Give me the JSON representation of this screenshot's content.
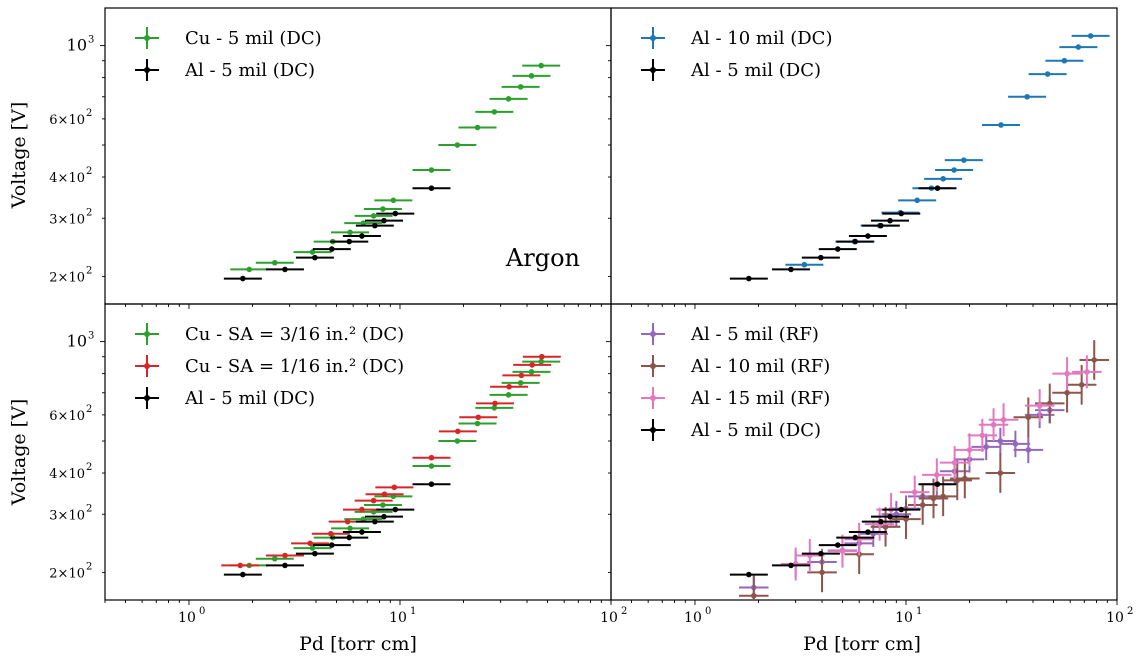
{
  "figure": {
    "annotation": "Argon",
    "ylabel": "Voltage [V]",
    "xlabel": "Pd [torr cm]",
    "x_tick_labels": [
      "10",
      "10",
      "10"
    ],
    "x_tick_exponents": [
      "0",
      "1",
      "2"
    ],
    "y_tick_labels": {
      "1000": {
        "base": "10",
        "exp": "3"
      },
      "600": {
        "base": "6×10",
        "exp": "2"
      },
      "400": {
        "base": "4×10",
        "exp": "2"
      },
      "300": {
        "base": "3×10",
        "exp": "2"
      },
      "200": {
        "base": "2×10",
        "exp": "2"
      }
    }
  },
  "chart_data": [
    {
      "type": "scatter",
      "x_scale": "log",
      "y_scale": "log",
      "xlim": [
        0.4,
        100
      ],
      "ylim": [
        165,
        1300
      ],
      "annotation": "Argon",
      "legend_position": "top-left",
      "series": [
        {
          "name": "Cu - 5 mil (DC)",
          "color": "#2ca02c",
          "x": [
            1.93,
            2.55,
            3.85,
            4.8,
            5.8,
            6.7,
            7.5,
            8.3,
            9.3,
            14.1,
            18.7,
            23.3,
            28.0,
            32.7,
            37.3,
            42.0,
            46.7
          ],
          "y": [
            210,
            220,
            237,
            255,
            272,
            290,
            305,
            320,
            340,
            420,
            500,
            565,
            630,
            690,
            750,
            810,
            870
          ],
          "xerr": 0.09,
          "yerr": 0.0
        },
        {
          "name": "Al - 5 mil (DC)",
          "color": "#000000",
          "x": [
            1.8,
            2.85,
            3.95,
            4.75,
            5.75,
            6.6,
            7.6,
            8.4,
            9.5,
            14.1
          ],
          "y": [
            197,
            210,
            228,
            242,
            255,
            265,
            285,
            295,
            310,
            370
          ],
          "xerr": 0.09,
          "yerr": 0.0
        }
      ]
    },
    {
      "type": "scatter",
      "x_scale": "log",
      "y_scale": "log",
      "xlim": [
        0.4,
        100
      ],
      "ylim": [
        165,
        1300
      ],
      "legend_position": "top-left",
      "series": [
        {
          "name": "Al - 10 mil (DC)",
          "color": "#1f77b4",
          "x": [
            3.3,
            5.7,
            7.5,
            9.4,
            11.3,
            13.2,
            15.0,
            16.9,
            18.8,
            28.2,
            37.5,
            46.9,
            56.3,
            65.6,
            75.0
          ],
          "y": [
            217,
            255,
            285,
            312,
            340,
            370,
            395,
            420,
            450,
            575,
            700,
            820,
            900,
            990,
            1070
          ],
          "xerr": 0.09,
          "yerr": 0.0
        },
        {
          "name": "Al - 5 mil (DC)",
          "color": "#000000",
          "x": [
            1.8,
            2.85,
            3.95,
            4.75,
            5.75,
            6.6,
            7.6,
            8.4,
            9.5,
            14.1
          ],
          "y": [
            197,
            210,
            228,
            242,
            255,
            265,
            285,
            295,
            310,
            370
          ],
          "xerr": 0.09,
          "yerr": 0.0
        }
      ]
    },
    {
      "type": "scatter",
      "x_scale": "log",
      "y_scale": "log",
      "xlim": [
        0.4,
        100
      ],
      "ylim": [
        165,
        1300
      ],
      "legend_position": "top-left",
      "series": [
        {
          "name": "Cu - SA = 3/16 in.² (DC)",
          "color": "#2ca02c",
          "x": [
            1.93,
            2.55,
            3.85,
            4.8,
            5.8,
            6.7,
            7.5,
            8.3,
            9.3,
            14.1,
            18.7,
            23.3,
            28.0,
            32.7,
            37.3,
            42.0,
            46.7
          ],
          "y": [
            210,
            220,
            237,
            255,
            272,
            290,
            305,
            320,
            340,
            420,
            500,
            565,
            630,
            690,
            750,
            810,
            870
          ],
          "xerr": 0.09,
          "yerr": 0.0
        },
        {
          "name": "Cu - SA = 1/16 in.² (DC)",
          "color": "#d62728",
          "x": [
            1.75,
            2.85,
            3.75,
            4.7,
            5.65,
            6.6,
            7.5,
            8.45,
            9.4,
            14.1,
            18.8,
            23.5,
            28.2,
            32.9,
            37.6,
            42.3,
            47.0
          ],
          "y": [
            210,
            225,
            245,
            262,
            285,
            310,
            330,
            345,
            362,
            445,
            535,
            590,
            650,
            730,
            790,
            850,
            900
          ],
          "xerr": 0.09,
          "yerr": 0.0
        },
        {
          "name": "Al - 5 mil (DC)",
          "color": "#000000",
          "x": [
            1.8,
            2.85,
            3.95,
            4.75,
            5.75,
            6.6,
            7.6,
            8.4,
            9.5,
            14.1
          ],
          "y": [
            197,
            210,
            228,
            242,
            255,
            265,
            285,
            295,
            310,
            370
          ],
          "xerr": 0.09,
          "yerr": 0.0
        }
      ]
    },
    {
      "type": "scatter",
      "x_scale": "log",
      "y_scale": "log",
      "xlim": [
        0.4,
        100
      ],
      "ylim": [
        165,
        1300
      ],
      "legend_position": "top-left",
      "series": [
        {
          "name": "Al - 5 mil (RF)",
          "color": "#9467bd",
          "x": [
            1.9,
            3.0,
            4.0,
            5.0,
            6.0,
            7.0,
            8.0,
            9.0,
            10.0,
            12.0,
            14.0,
            17.0,
            20.0,
            24.0,
            28.0,
            33.0,
            38.0,
            43.0,
            48.0
          ],
          "y": [
            180,
            212,
            215,
            233,
            245,
            262,
            275,
            300,
            312,
            340,
            370,
            405,
            440,
            480,
            500,
            490,
            470,
            600,
            620
          ],
          "xerr": 0.07,
          "yerr": 0.04
        },
        {
          "name": "Al - 10 mil (RF)",
          "color": "#8c564b",
          "x": [
            1.9,
            4.0,
            6.0,
            8.0,
            10.0,
            12.0,
            13.5,
            15.0,
            17.5,
            19.0,
            28.0,
            38.0,
            48.0,
            58.0,
            68.0,
            78.0
          ],
          "y": [
            170,
            200,
            227,
            275,
            290,
            320,
            335,
            340,
            380,
            385,
            400,
            590,
            650,
            700,
            740,
            880
          ],
          "xerr": 0.07,
          "yerr": 0.06
        },
        {
          "name": "Al - 15 mil (RF)",
          "color": "#e377c2",
          "x": [
            3.0,
            3.5,
            5.0,
            6.0,
            7.5,
            8.5,
            11.0,
            14.0,
            17.0,
            20.0,
            23.0,
            26.0,
            29.0,
            43.0,
            58.0,
            72.0
          ],
          "y": [
            212,
            225,
            232,
            252,
            280,
            310,
            350,
            395,
            430,
            470,
            520,
            560,
            580,
            640,
            800,
            810
          ],
          "xerr": 0.07,
          "yerr": 0.05
        },
        {
          "name": "Al - 5 mil (DC)",
          "color": "#000000",
          "x": [
            1.8,
            2.85,
            3.95,
            4.75,
            5.75,
            6.6,
            7.6,
            8.4,
            9.5,
            14.1
          ],
          "y": [
            197,
            210,
            228,
            242,
            255,
            265,
            285,
            295,
            310,
            370
          ],
          "xerr": 0.09,
          "yerr": 0.0
        }
      ]
    }
  ]
}
